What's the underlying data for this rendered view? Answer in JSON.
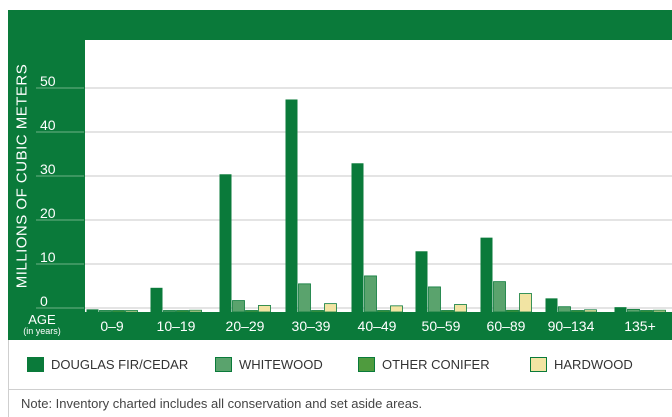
{
  "chart_data": {
    "type": "bar",
    "ylabel": "MILLIONS OF CUBIC METERS",
    "xlabel": "AGE",
    "xlabel_sub": "(in years)",
    "ylim": [
      0,
      60
    ],
    "yticks": [
      "0",
      "10",
      "20",
      "30",
      "40",
      "50"
    ],
    "categories": [
      "0–9",
      "10–19",
      "20–29",
      "30–39",
      "40–49",
      "50–59",
      "60–89",
      "90–134",
      "135+"
    ],
    "series": [
      {
        "name": "DOUGLAS FIR/CEDAR",
        "color": "#0a7a3a",
        "values": [
          0.6,
          5.5,
          31.3,
          48.3,
          33.8,
          13.8,
          16.9,
          3.1,
          1.1
        ]
      },
      {
        "name": "WHITEWOOD",
        "color": "#5aa36d",
        "values": [
          0.3,
          0.3,
          2.6,
          6.4,
          8.2,
          5.7,
          6.9,
          1.2,
          0.6
        ]
      },
      {
        "name": "OTHER CONIFER",
        "color": "#4f9b3e",
        "values": [
          0.2,
          0.2,
          0.3,
          0.3,
          0.3,
          0.3,
          0.4,
          0.3,
          0.3
        ]
      },
      {
        "name": "HARDWOOD",
        "color": "#f2e4a3",
        "values": [
          0.3,
          0.4,
          1.5,
          1.9,
          1.4,
          1.7,
          4.2,
          0.5,
          0.4
        ]
      }
    ],
    "grid": true,
    "legend": "bottom",
    "note": "Note: Inventory charted includes all conservation and set aside areas."
  }
}
